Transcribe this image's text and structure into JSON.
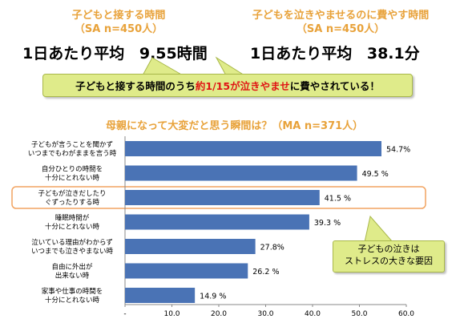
{
  "header_left": {
    "title": "子どもと接する時間",
    "sample": "（SA n=450人）",
    "stat_label": "1日あたり平均",
    "stat_value": "9.55時間"
  },
  "header_right": {
    "title": "子どもを泣きやませるのに費やす時間",
    "sample": "（SA n=450人）",
    "stat_label": "1日あたり平均",
    "stat_value": "38.1分"
  },
  "callout_top": {
    "part1": "子どもと接する時間のうち",
    "part2": "約1/15が泣きやませ",
    "part3": "に費やされている！"
  },
  "chart_title": "母親になって大変だと思う瞬間は？（MA n=371人）",
  "callout_bottom": {
    "line1": "子どもの泣きは",
    "line2": "ストレスの大きな要因"
  },
  "colors": {
    "bar": "#4a73b5",
    "header_text": "#e8a23a",
    "highlight_text": "#e01414",
    "callout_bg": "#dfeb8a",
    "highlight_box": "#f2a461"
  },
  "chart_data": {
    "type": "bar",
    "orientation": "horizontal",
    "title": "母親になって大変だと思う瞬間は？（MA n=371人）",
    "categories": [
      [
        "子どもが言うことを聞かず",
        "いつまでもわがままを言う時"
      ],
      [
        "自分ひとりの時間を",
        "十分にとれない時"
      ],
      [
        "子どもが泣きだしたり",
        "ぐずったりする時"
      ],
      [
        "睡眠時間が",
        "十分にとれない時"
      ],
      [
        "泣いている理由がわからず",
        "いつまでも泣きやまない時"
      ],
      [
        "自由に外出が",
        "出来ない時"
      ],
      [
        "家事や仕事の時間を",
        "十分にとれない時"
      ]
    ],
    "values": [
      54.7,
      49.5,
      41.5,
      39.3,
      27.8,
      26.2,
      14.9
    ],
    "value_labels": [
      "54.7%",
      "49.5 %",
      "41.5 %",
      "39.3 %",
      "27.8%",
      "26.2 %",
      "14.9 %"
    ],
    "highlighted_index": 2,
    "xlim": [
      0,
      60
    ],
    "xticks": [
      "-",
      "10.0",
      "20.0",
      "30.0",
      "40.0",
      "50.0",
      "60.0"
    ],
    "grid": false,
    "legend": "none"
  }
}
